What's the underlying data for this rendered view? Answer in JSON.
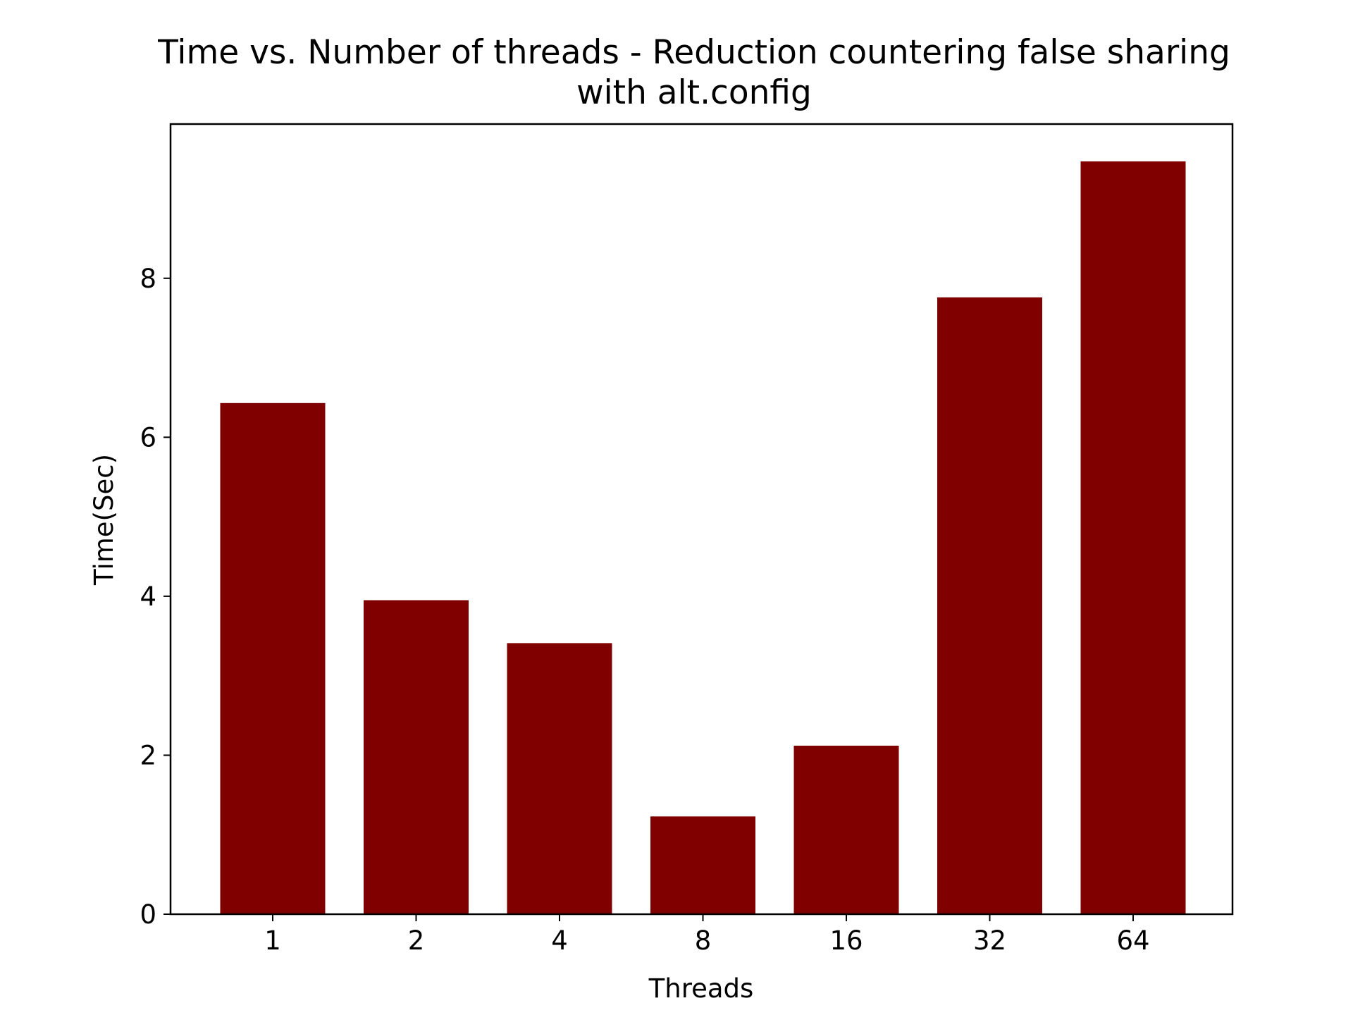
{
  "chart_data": {
    "type": "bar",
    "title": [
      "Time vs. Number of threads - Reduction countering false sharing",
      "with alt.config"
    ],
    "xlabel": "Threads",
    "ylabel": "Time(Sec)",
    "categories": [
      "1",
      "2",
      "4",
      "8",
      "16",
      "32",
      "64"
    ],
    "values": [
      6.43,
      3.95,
      3.41,
      1.23,
      2.12,
      7.76,
      9.47
    ],
    "ylim": [
      0,
      9.94
    ],
    "yticks": [
      0,
      2,
      4,
      6,
      8
    ],
    "grid": false,
    "bar_color": "#800000",
    "axis_color": "#000000"
  }
}
